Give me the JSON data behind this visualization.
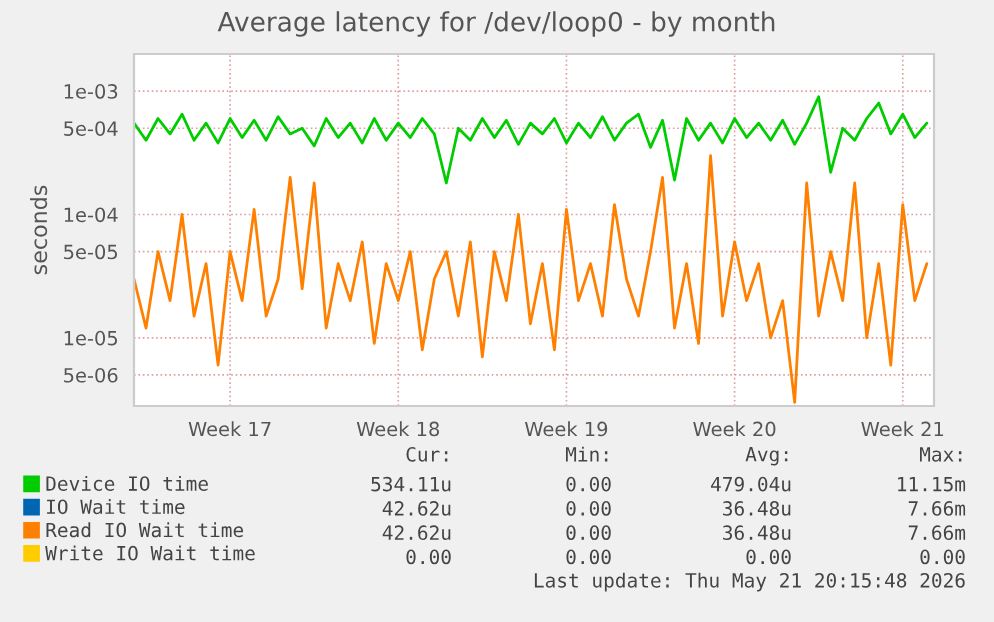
{
  "chart_data": {
    "type": "line",
    "title": "Average latency for /dev/loop0 - by month",
    "ylabel": "seconds",
    "categories": [
      null,
      null,
      null,
      null,
      null,
      null,
      null,
      null,
      "Week 17",
      null,
      null,
      null,
      null,
      null,
      null,
      null,
      null,
      null,
      null,
      null,
      null,
      null,
      "Week 18",
      null,
      null,
      null,
      null,
      null,
      null,
      null,
      null,
      null,
      null,
      null,
      null,
      null,
      "Week 19",
      null,
      null,
      null,
      null,
      null,
      null,
      null,
      null,
      null,
      null,
      null,
      null,
      null,
      "Week 20",
      null,
      null,
      null,
      null,
      null,
      null,
      null,
      null,
      null,
      null,
      null,
      null,
      null,
      "Week 21",
      null,
      null
    ],
    "series": [
      {
        "name": "Device IO time",
        "color": "#00cc00",
        "values": [
          0.00055,
          0.0004,
          0.0006,
          0.00045,
          0.00065,
          0.0004,
          0.00055,
          0.00038,
          0.0006,
          0.00042,
          0.00058,
          0.0004,
          0.00062,
          0.00045,
          0.0005,
          0.00036,
          0.0006,
          0.00042,
          0.00055,
          0.00038,
          0.0006,
          0.0004,
          0.00055,
          0.00042,
          0.0006,
          0.00045,
          0.00018,
          0.0005,
          0.0004,
          0.0006,
          0.00042,
          0.00058,
          0.00037,
          0.00055,
          0.00045,
          0.0006,
          0.00038,
          0.00055,
          0.00042,
          0.00062,
          0.0004,
          0.00055,
          0.00065,
          0.00035,
          0.00058,
          0.00019,
          0.0006,
          0.0004,
          0.00055,
          0.00038,
          0.0006,
          0.00042,
          0.00055,
          0.0004,
          0.00058,
          0.00037,
          0.00055,
          0.0009,
          0.00022,
          0.0005,
          0.0004,
          0.0006,
          0.0008,
          0.00045,
          0.00065,
          0.00042,
          0.00055
        ]
      },
      {
        "name": "IO Wait time",
        "color": "#0066b3",
        "values": [
          null,
          null,
          null,
          null,
          null,
          null,
          null,
          null,
          null,
          null,
          null,
          null,
          null,
          null,
          null,
          null,
          null,
          null,
          null,
          null,
          null,
          null,
          null,
          null,
          null,
          null,
          null,
          null,
          null,
          null,
          null,
          null,
          null,
          null,
          null,
          null,
          null,
          null,
          null,
          null,
          null,
          null,
          null,
          null,
          null,
          null,
          null,
          null,
          null,
          null,
          null,
          null,
          null,
          null,
          null,
          null,
          null,
          null,
          null,
          null,
          null,
          null,
          null,
          null,
          null,
          null,
          null
        ]
      },
      {
        "name": "Read IO Wait time",
        "color": "#ff8000",
        "values": [
          3e-05,
          1.2e-05,
          5e-05,
          2e-05,
          0.0001,
          1.5e-05,
          4e-05,
          6e-06,
          5e-05,
          2e-05,
          0.00011,
          1.5e-05,
          3e-05,
          0.0002,
          2.5e-05,
          0.00018,
          1.2e-05,
          4e-05,
          2e-05,
          6e-05,
          9e-06,
          4e-05,
          2e-05,
          5e-05,
          8e-06,
          3e-05,
          5e-05,
          1.5e-05,
          6e-05,
          7e-06,
          5e-05,
          2e-05,
          0.0001,
          1.3e-05,
          4e-05,
          8e-06,
          0.00011,
          2e-05,
          4e-05,
          1.5e-05,
          0.00012,
          3e-05,
          1.5e-05,
          5e-05,
          0.0002,
          1.2e-05,
          4e-05,
          9e-06,
          0.0003,
          1.5e-05,
          6e-05,
          2e-05,
          4e-05,
          1e-05,
          2e-05,
          3e-06,
          0.00018,
          1.5e-05,
          5e-05,
          2e-05,
          0.00018,
          1e-05,
          4e-05,
          6e-06,
          0.00012,
          2e-05,
          4e-05
        ]
      },
      {
        "name": "Write IO Wait time",
        "color": "#ffcc00",
        "values": [
          null,
          null,
          null,
          null,
          null,
          null,
          null,
          null,
          null,
          null,
          null,
          null,
          null,
          null,
          null,
          null,
          null,
          null,
          null,
          null,
          null,
          null,
          null,
          null,
          null,
          null,
          null,
          null,
          null,
          null,
          null,
          null,
          null,
          null,
          null,
          null,
          null,
          null,
          null,
          null,
          null,
          null,
          null,
          null,
          null,
          null,
          null,
          null,
          null,
          null,
          null,
          null,
          null,
          null,
          null,
          null,
          null,
          null,
          null,
          null,
          null,
          null,
          null,
          null,
          null,
          null,
          null
        ]
      }
    ],
    "log": true,
    "ylim": [
      2.8e-06,
      0.002
    ],
    "yticks": [
      {
        "value": 0.001,
        "label": "1e-03"
      },
      {
        "value": 0.0005,
        "label": "5e-04"
      },
      {
        "value": 0.0001,
        "label": "1e-04"
      },
      {
        "value": 5e-05,
        "label": "5e-05"
      },
      {
        "value": 1e-05,
        "label": "1e-05"
      },
      {
        "value": 5e-06,
        "label": "5e-06"
      }
    ],
    "grid": true,
    "legend": "bottom",
    "marker": "none",
    "line_style": "solid",
    "annotations": [
      "Cur:",
      "Min:",
      "Avg:",
      "Max:",
      "534.11u",
      "0.00",
      "479.04u",
      "11.15m",
      "42.62u",
      "0.00",
      "36.48u",
      "7.66m",
      "42.62u",
      "0.00",
      "36.48u",
      "7.66m",
      "0.00",
      "0.00",
      "0.00",
      "0.00",
      "Last update: Thu May 21 20:15:48 2026"
    ]
  }
}
